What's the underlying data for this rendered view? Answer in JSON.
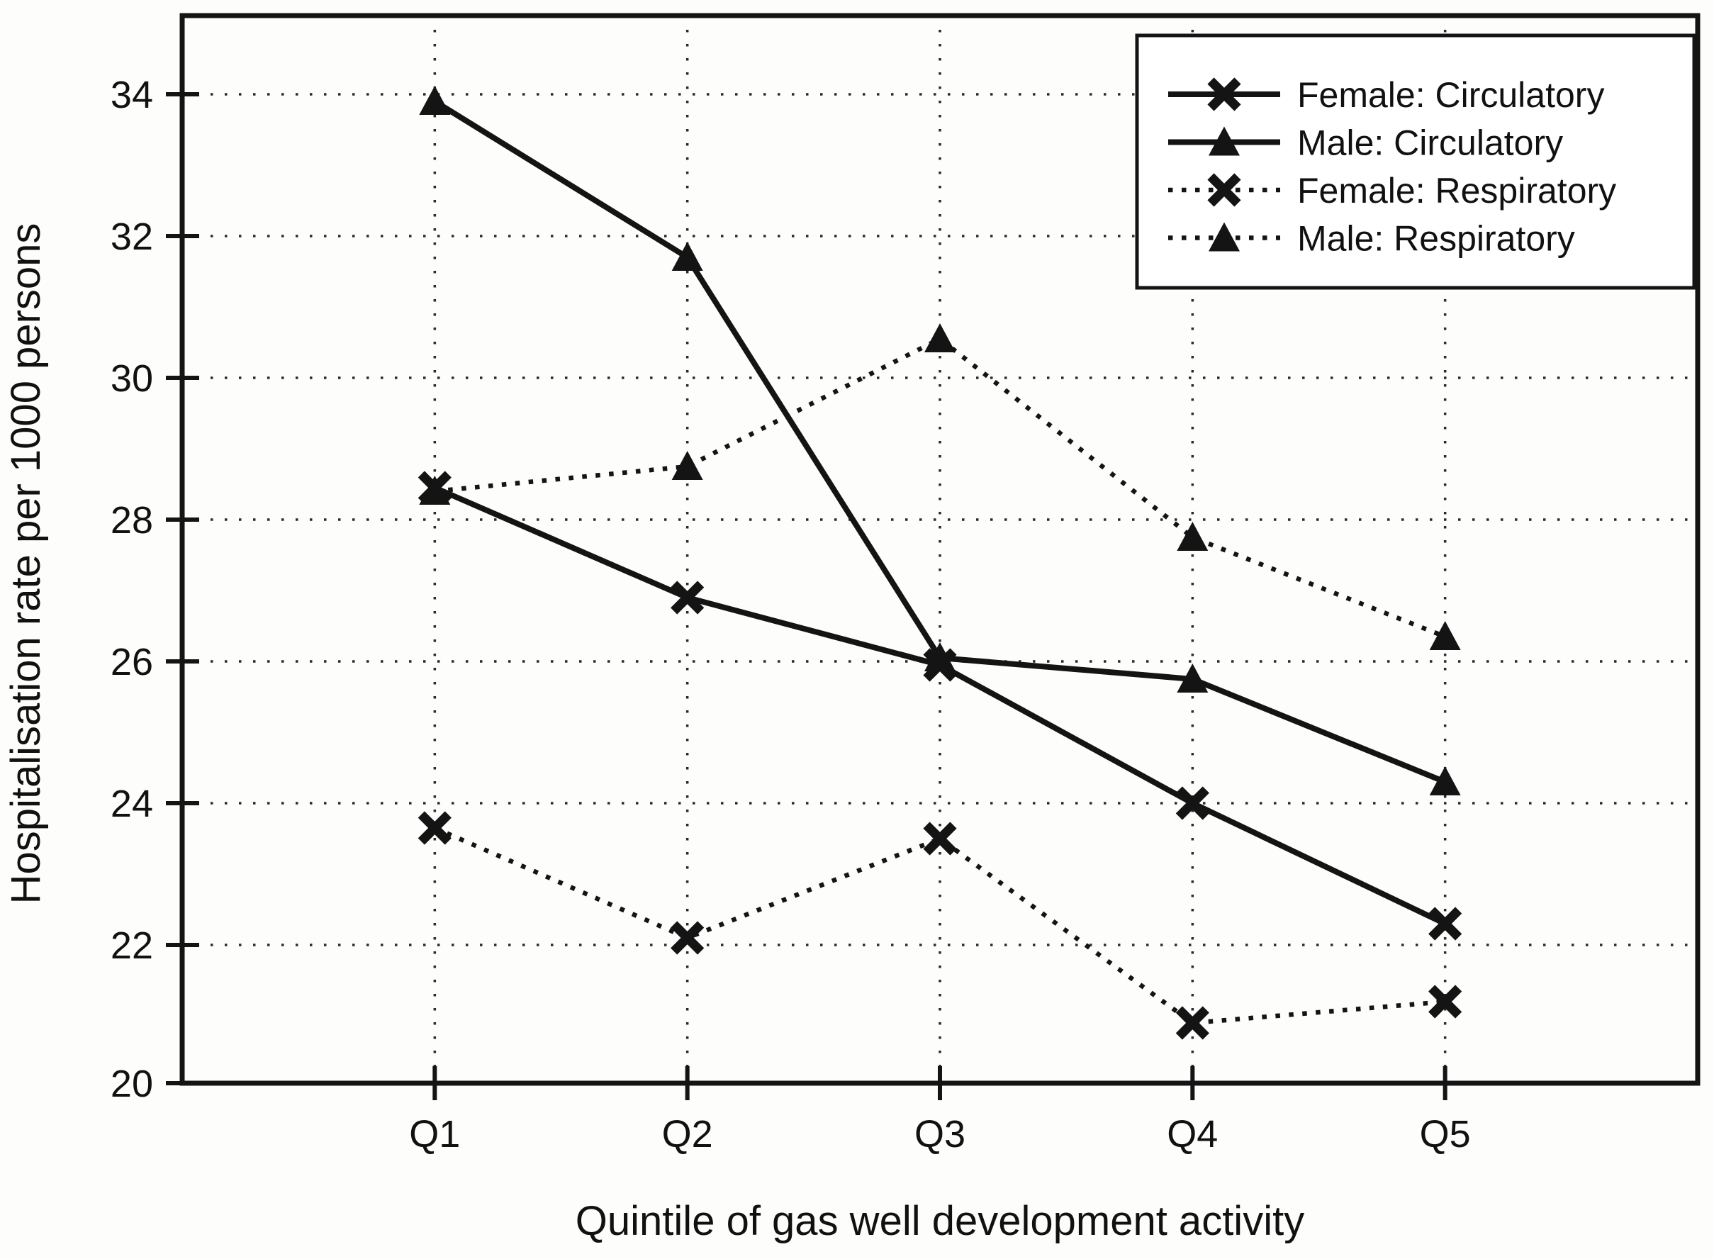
{
  "chart_data": {
    "type": "line",
    "title": "",
    "xlabel": "Quintile of gas well development activity",
    "ylabel": "Hospitalisation rate per 1000 persons",
    "categories": [
      "Q1",
      "Q2",
      "Q3",
      "Q4",
      "Q5"
    ],
    "y_ticks": [
      20,
      22,
      24,
      26,
      28,
      30,
      32,
      34
    ],
    "ylim": [
      20,
      35.1
    ],
    "grid": true,
    "grid_style": "dotted",
    "legend_position": "top-right",
    "series": [
      {
        "name": "Female: Circulatory",
        "marker": "x",
        "line": "solid",
        "values": [
          28.45,
          26.9,
          25.95,
          24.0,
          22.3
        ]
      },
      {
        "name": "Male: Circulatory",
        "marker": "triangle",
        "line": "solid",
        "values": [
          33.9,
          31.7,
          26.05,
          25.75,
          24.3
        ]
      },
      {
        "name": "Female: Respiratory",
        "marker": "x",
        "line": "dotted",
        "values": [
          23.65,
          22.1,
          23.5,
          20.9,
          21.2
        ]
      },
      {
        "name": "Male: Respiratory",
        "marker": "triangle",
        "line": "dotted",
        "values": [
          28.4,
          28.75,
          30.55,
          27.75,
          26.35
        ]
      }
    ],
    "colors": {
      "ink": "#141414",
      "background": "#fdfdfc",
      "legend_fill": "#ffffff"
    }
  }
}
